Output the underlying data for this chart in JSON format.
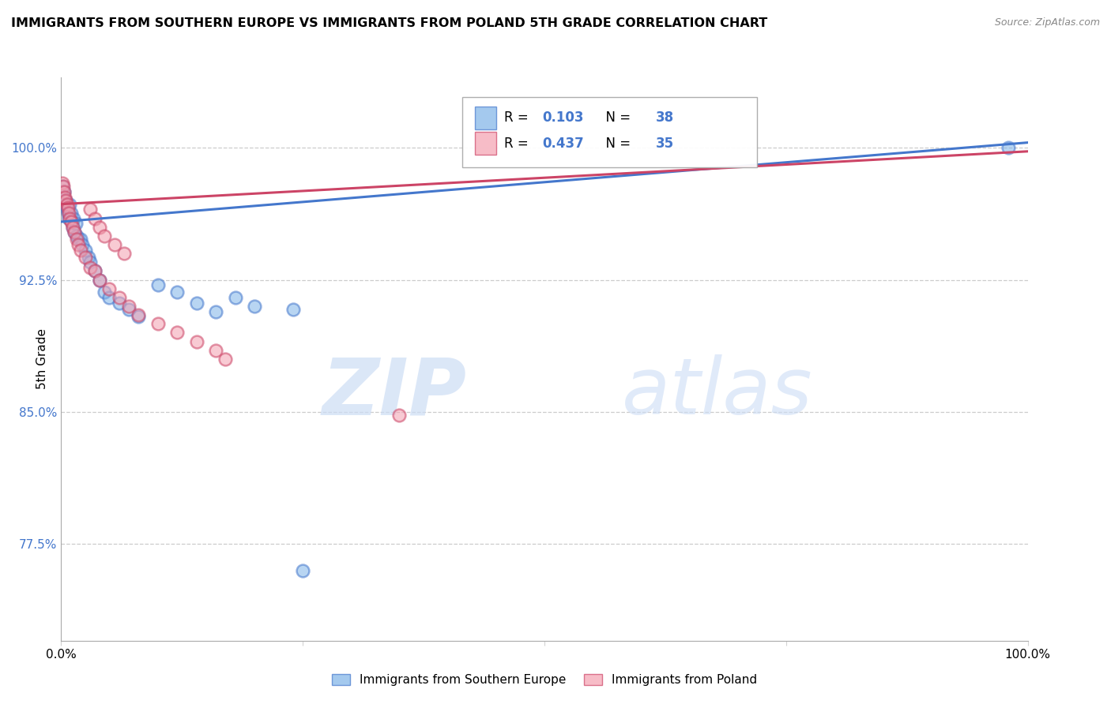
{
  "title": "IMMIGRANTS FROM SOUTHERN EUROPE VS IMMIGRANTS FROM POLAND 5TH GRADE CORRELATION CHART",
  "source": "Source: ZipAtlas.com",
  "ylabel": "5th Grade",
  "ytick_labels": [
    "100.0%",
    "92.5%",
    "85.0%",
    "77.5%"
  ],
  "ytick_values": [
    1.0,
    0.925,
    0.85,
    0.775
  ],
  "xlim": [
    0.0,
    1.0
  ],
  "ylim": [
    0.72,
    1.04
  ],
  "legend_labels": [
    "Immigrants from Southern Europe",
    "Immigrants from Poland"
  ],
  "r_southern": 0.103,
  "n_southern": 38,
  "r_poland": 0.437,
  "n_poland": 35,
  "blue_color": "#7EB3E8",
  "pink_color": "#F4A0B0",
  "trendline_blue": "#4477CC",
  "trendline_pink": "#CC4466",
  "background_color": "#FFFFFF",
  "blue_trendline_start": 0.958,
  "blue_trendline_end": 1.003,
  "pink_trendline_start": 0.968,
  "pink_trendline_end": 0.998,
  "southern_europe_x": [
    0.001,
    0.002,
    0.003,
    0.004,
    0.005,
    0.006,
    0.007,
    0.008,
    0.009,
    0.01,
    0.011,
    0.012,
    0.013,
    0.014,
    0.015,
    0.016,
    0.018,
    0.02,
    0.022,
    0.025,
    0.028,
    0.03,
    0.035,
    0.04,
    0.045,
    0.05,
    0.06,
    0.07,
    0.08,
    0.1,
    0.12,
    0.14,
    0.16,
    0.18,
    0.2,
    0.25,
    0.24,
    0.98
  ],
  "southern_europe_y": [
    0.978,
    0.972,
    0.975,
    0.968,
    0.97,
    0.965,
    0.963,
    0.96,
    0.968,
    0.963,
    0.958,
    0.955,
    0.96,
    0.952,
    0.957,
    0.95,
    0.948,
    0.948,
    0.945,
    0.942,
    0.938,
    0.935,
    0.93,
    0.925,
    0.918,
    0.915,
    0.912,
    0.908,
    0.904,
    0.922,
    0.918,
    0.912,
    0.907,
    0.915,
    0.91,
    0.76,
    0.908,
    1.0
  ],
  "poland_x": [
    0.001,
    0.002,
    0.003,
    0.004,
    0.005,
    0.006,
    0.007,
    0.008,
    0.009,
    0.01,
    0.012,
    0.014,
    0.016,
    0.018,
    0.02,
    0.025,
    0.03,
    0.035,
    0.04,
    0.05,
    0.06,
    0.07,
    0.08,
    0.1,
    0.12,
    0.14,
    0.16,
    0.17,
    0.03,
    0.035,
    0.04,
    0.045,
    0.055,
    0.065,
    0.35
  ],
  "poland_y": [
    0.98,
    0.978,
    0.975,
    0.972,
    0.97,
    0.968,
    0.966,
    0.963,
    0.96,
    0.958,
    0.955,
    0.952,
    0.948,
    0.945,
    0.942,
    0.938,
    0.932,
    0.93,
    0.925,
    0.92,
    0.915,
    0.91,
    0.905,
    0.9,
    0.895,
    0.89,
    0.885,
    0.88,
    0.965,
    0.96,
    0.955,
    0.95,
    0.945,
    0.94,
    0.848
  ]
}
